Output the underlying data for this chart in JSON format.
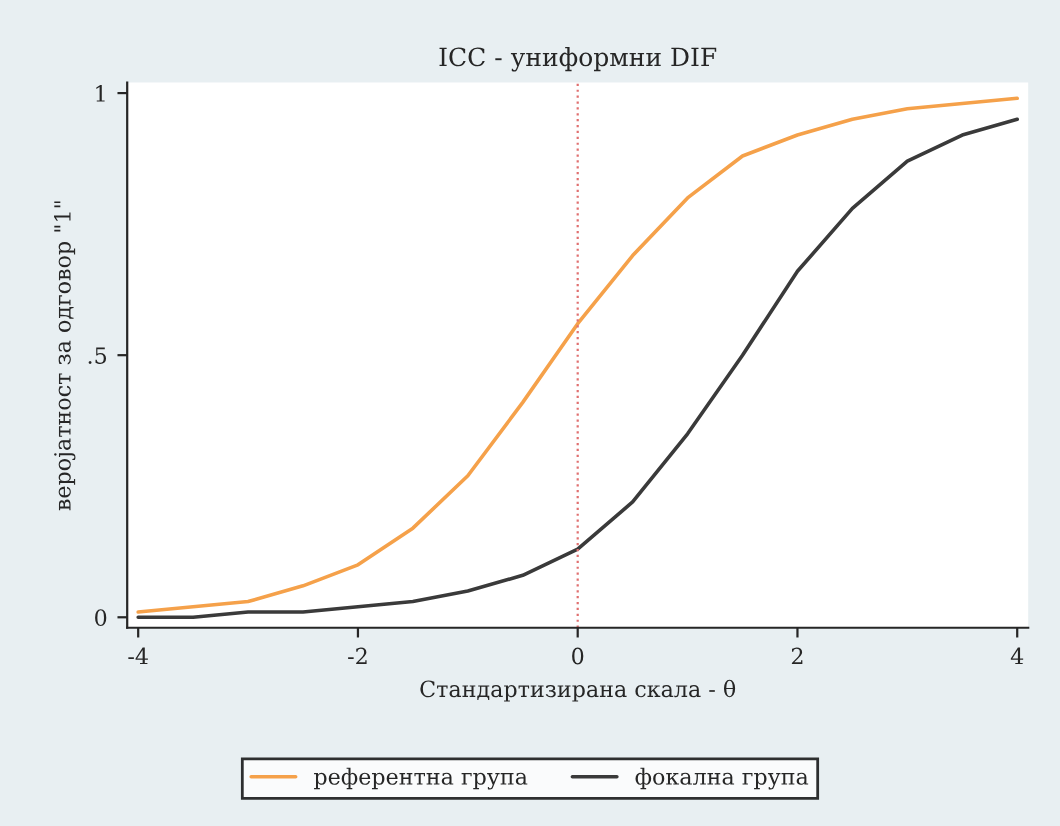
{
  "chart_data": {
    "type": "line",
    "title": "ICC - униформни DIF",
    "xlabel": "Стандартизирана скала - θ",
    "ylabel": "веројатност за одговор \"1\"",
    "x": [
      -4,
      -3.5,
      -3,
      -2.5,
      -2,
      -1.5,
      -1,
      -0.5,
      0,
      0.5,
      1,
      1.5,
      2,
      2.5,
      3,
      3.5,
      4
    ],
    "series": [
      {
        "name": "референтна група",
        "color": "#f5a14a",
        "values": [
          0.01,
          0.02,
          0.03,
          0.06,
          0.1,
          0.17,
          0.27,
          0.41,
          0.56,
          0.69,
          0.8,
          0.88,
          0.92,
          0.95,
          0.97,
          0.98,
          0.99
        ]
      },
      {
        "name": "фокална група",
        "color": "#3a3a3a",
        "values": [
          0.0,
          0.0,
          0.01,
          0.01,
          0.02,
          0.03,
          0.05,
          0.08,
          0.13,
          0.22,
          0.35,
          0.5,
          0.66,
          0.78,
          0.87,
          0.92,
          0.95
        ]
      }
    ],
    "xlim": [
      -4.1,
      4.1
    ],
    "xticks": [
      -4,
      -2,
      0,
      2,
      4
    ],
    "ylim": [
      -0.02,
      1.02
    ],
    "yticks": [
      0,
      {
        "value": 0.5,
        "label": ".5"
      },
      1
    ],
    "ref_lines": [
      {
        "axis": "x",
        "value": 0,
        "color": "#e07070",
        "line_style": "dotted"
      }
    ],
    "grid": false,
    "legend": "bottom",
    "marker": "none",
    "line_style": "solid"
  }
}
